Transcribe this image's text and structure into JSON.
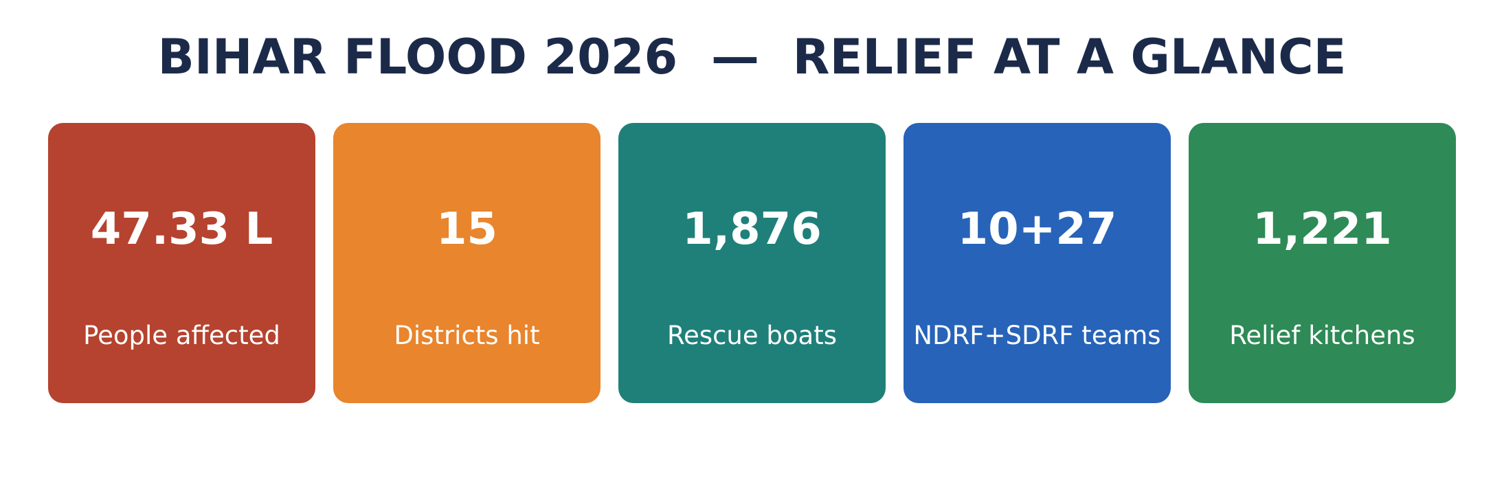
{
  "title": "BIHAR FLOOD 2026  —  RELIEF AT A GLANCE",
  "title_color": "#1c2a4a",
  "cards": [
    {
      "value": "47.33 L",
      "label": "People affected",
      "color": "#b5432f"
    },
    {
      "value": "15",
      "label": "Districts hit",
      "color": "#e8852d"
    },
    {
      "value": "1,876",
      "label": "Rescue boats",
      "color": "#1f807a"
    },
    {
      "value": "10+27",
      "label": "NDRF+SDRF teams",
      "color": "#2763b8"
    },
    {
      "value": "1,221",
      "label": "Relief kitchens",
      "color": "#2e8a56"
    }
  ]
}
